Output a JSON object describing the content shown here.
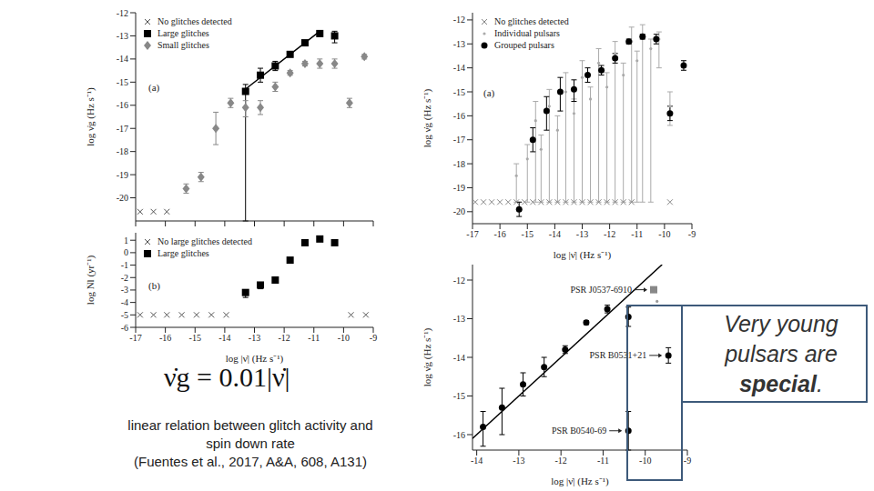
{
  "chart_data": [
    {
      "type": "scatter",
      "title": "(a)",
      "ylabel": "log ν̇g (Hz s⁻¹)",
      "xlim": [
        -17,
        -9
      ],
      "ylim": [
        -21,
        -12
      ],
      "xticks": [
        -17,
        -16,
        -15,
        -14,
        -13,
        -12,
        -11,
        -10,
        -9
      ],
      "yticks": [
        -20,
        -19,
        -18,
        -17,
        -16,
        -15,
        -14,
        -13,
        -12
      ],
      "tick_labels": "y",
      "legend": "upper left",
      "series": [
        {
          "name": "No glitches detected",
          "color": "#555555",
          "marker": "x",
          "x": [
            -16.85,
            -16.4,
            -15.95
          ],
          "y": [
            -20.6,
            -20.6,
            -20.6
          ]
        },
        {
          "name": "Large glitches",
          "color": "#000000",
          "marker": "square",
          "x": [
            -13.3,
            -12.8,
            -12.3,
            -11.8,
            -11.3,
            -10.8,
            -10.3
          ],
          "y": [
            -15.4,
            -14.7,
            -14.3,
            -13.8,
            -13.3,
            -12.9,
            -13.0
          ],
          "error": [
            [
              5.6,
              0.3
            ],
            [
              0.3,
              0.3
            ],
            [
              0.2,
              0.2
            ],
            [
              0.1,
              0.1
            ],
            [
              0.1,
              0.1
            ],
            [
              0.1,
              0.1
            ],
            [
              0.3,
              0.2
            ]
          ]
        },
        {
          "name": "Small glitches",
          "color": "#888888",
          "marker": "diamond",
          "x": [
            -15.3,
            -14.8,
            -14.3,
            -13.8,
            -13.3,
            -12.8,
            -12.3,
            -11.8,
            -11.3,
            -10.8,
            -10.3,
            -9.8,
            -9.3
          ],
          "y": [
            -19.6,
            -19.1,
            -17.0,
            -15.9,
            -16.1,
            -16.1,
            -15.2,
            -14.6,
            -14.2,
            -14.2,
            -14.2,
            -15.9,
            -13.9
          ],
          "error": [
            [
              0.2,
              0.2
            ],
            [
              0.2,
              0.2
            ],
            [
              0.7,
              0.7
            ],
            [
              0.2,
              0.2
            ],
            [
              0.4,
              0.3
            ],
            [
              0.3,
              0.3
            ],
            [
              0.2,
              0.2
            ],
            [
              0.1,
              0.1
            ],
            [
              0.1,
              0.1
            ],
            [
              0.2,
              0.2
            ],
            [
              0.2,
              0.2
            ],
            [
              0.2,
              0.2
            ],
            [
              0.1,
              0.1
            ]
          ]
        },
        {
          "type": "line",
          "color": "#000000",
          "line_style": "solid",
          "x": [
            -13.4,
            -10.85
          ],
          "y": [
            -15.4,
            -12.85
          ]
        }
      ]
    },
    {
      "type": "scatter",
      "title": "(b)",
      "xlabel": "log |ν̇| (Hz s⁻¹)",
      "ylabel": "log Ṅl (yr⁻¹)",
      "xlim": [
        -17,
        -9
      ],
      "ylim": [
        -6,
        1.6
      ],
      "xticks": [
        -17,
        -16,
        -15,
        -14,
        -13,
        -12,
        -11,
        -10,
        -9
      ],
      "yticks": [
        -6,
        -5,
        -4,
        -3,
        -2,
        -1,
        0,
        1
      ],
      "legend": "upper left",
      "series": [
        {
          "name": "No large glitches detected",
          "color": "#555555",
          "marker": "x",
          "x": [
            -16.85,
            -16.4,
            -15.95,
            -15.45,
            -14.95,
            -14.45,
            -13.95,
            -9.75,
            -9.25
          ],
          "y": [
            -5,
            -5,
            -5,
            -5,
            -5,
            -5,
            -5,
            -5,
            -5
          ]
        },
        {
          "name": "Large glitches",
          "color": "#000000",
          "marker": "square",
          "x": [
            -13.3,
            -12.8,
            -12.3,
            -11.8,
            -11.3,
            -10.8,
            -10.3
          ],
          "y": [
            -3.2,
            -2.6,
            -2.2,
            -0.6,
            0.8,
            1.1,
            0.8
          ],
          "error": [
            [
              0.4,
              0.2
            ],
            [
              0.3,
              0.2
            ],
            [
              0.2,
              0.1
            ],
            [
              0.1,
              0.1
            ],
            [
              0.1,
              0.1
            ],
            [
              0.1,
              0.1
            ],
            [
              0.2,
              0.1
            ]
          ]
        }
      ]
    },
    {
      "type": "scatter",
      "title": "(a)",
      "xlabel": "log |ν̇| (Hz s⁻¹)",
      "ylabel": "log ν̇g (Hz s⁻¹)",
      "xlim": [
        -17,
        -9
      ],
      "ylim": [
        -20.5,
        -11.7
      ],
      "xticks": [
        -17,
        -16,
        -15,
        -14,
        -13,
        -12,
        -11,
        -10,
        -9
      ],
      "yticks": [
        -20,
        -19,
        -18,
        -17,
        -16,
        -15,
        -14,
        -13,
        -12
      ],
      "legend": "upper left",
      "series": [
        {
          "name": "No glitches detected",
          "color": "#888888",
          "marker": "x",
          "x": [
            -16.9,
            -16.6,
            -16.3,
            -16.0,
            -15.7,
            -15.4,
            -15.1,
            -14.8,
            -14.5,
            -14.2,
            -13.9,
            -13.6,
            -13.3,
            -13.0,
            -12.7,
            -12.4,
            -12.1,
            -11.8,
            -11.5,
            -11.2,
            -9.8
          ],
          "y": [
            -19.6,
            -19.6,
            -19.6,
            -19.6,
            -19.6,
            -19.6,
            -19.6,
            -19.6,
            -19.6,
            -19.6,
            -19.6,
            -19.6,
            -19.6,
            -19.6,
            -19.6,
            -19.6,
            -19.6,
            -19.6,
            -19.6,
            -19.6,
            -19.6
          ]
        },
        {
          "name": "Individual pulsars",
          "color": "#aaaaaa",
          "marker": "point",
          "x": [
            -15.4,
            -15.0,
            -14.7,
            -14.5,
            -14.2,
            -13.9,
            -13.6,
            -13.3,
            -13.0,
            -12.7,
            -12.4,
            -12.1,
            -11.8,
            -11.5,
            -11.2,
            -11.0,
            -10.8,
            -10.5,
            -10.2,
            -9.8
          ],
          "y": [
            -18.5,
            -17.8,
            -16.2,
            -17.4,
            -15.6,
            -16.6,
            -15.0,
            -15.9,
            -14.4,
            -15.3,
            -13.8,
            -14.8,
            -13.4,
            -14.3,
            -12.9,
            -13.7,
            -12.6,
            -13.2,
            -12.8,
            -15.6
          ],
          "error": [
            [
              1.1,
              0.5
            ],
            [
              1.8,
              0.6
            ],
            [
              3.4,
              0.8
            ],
            [
              2.2,
              0.6
            ],
            [
              4.0,
              0.7
            ],
            [
              3.0,
              0.6
            ],
            [
              4.6,
              0.8
            ],
            [
              3.7,
              0.6
            ],
            [
              5.2,
              0.7
            ],
            [
              4.3,
              0.5
            ],
            [
              5.8,
              0.6
            ],
            [
              4.8,
              0.6
            ],
            [
              6.2,
              0.5
            ],
            [
              5.3,
              0.5
            ],
            [
              6.7,
              0.6
            ],
            [
              5.9,
              0.4
            ],
            [
              7.0,
              0.4
            ],
            [
              6.4,
              0.4
            ],
            [
              1.2,
              0.3
            ],
            [
              0.8,
              0.6
            ]
          ]
        },
        {
          "name": "Grouped pulsars",
          "color": "#000000",
          "marker": "circle",
          "x": [
            -15.3,
            -14.8,
            -14.3,
            -13.8,
            -13.3,
            -12.8,
            -12.3,
            -11.8,
            -11.3,
            -10.8,
            -10.3,
            -9.8,
            -9.3
          ],
          "y": [
            -19.9,
            -17.0,
            -15.8,
            -15.0,
            -14.9,
            -14.3,
            -14.1,
            -13.6,
            -12.9,
            -12.7,
            -12.8,
            -15.9,
            -13.9
          ],
          "error": [
            [
              0.3,
              0.3
            ],
            [
              0.5,
              0.5
            ],
            [
              0.8,
              0.6
            ],
            [
              0.8,
              0.6
            ],
            [
              0.5,
              0.4
            ],
            [
              0.3,
              0.3
            ],
            [
              0.2,
              0.2
            ],
            [
              0.2,
              0.2
            ],
            [
              0.1,
              0.1
            ],
            [
              0.1,
              0.1
            ],
            [
              0.2,
              0.2
            ],
            [
              0.3,
              0.3
            ],
            [
              0.2,
              0.2
            ]
          ]
        }
      ]
    },
    {
      "type": "scatter",
      "xlabel": "log |ν̇| (Hz s⁻¹)",
      "ylabel": "log ν̇g (Hz s⁻¹)",
      "xlim": [
        -14.1,
        -9
      ],
      "ylim": [
        -16.4,
        -11.6
      ],
      "xticks": [
        -14,
        -13,
        -12,
        -11,
        -10,
        -9
      ],
      "yticks": [
        -16,
        -15,
        -14,
        -13,
        -12
      ],
      "series": [
        {
          "type": "line",
          "color": "#000000",
          "line_style": "solid",
          "x": [
            -14.1,
            -9.6
          ],
          "y": [
            -16.1,
            -11.6
          ]
        },
        {
          "color": "#000000",
          "marker": "circle",
          "x": [
            -13.85,
            -13.4,
            -12.9,
            -12.4,
            -11.9,
            -11.4,
            -10.9,
            -10.4,
            -9.45,
            -10.4
          ],
          "y": [
            -15.8,
            -15.3,
            -14.7,
            -14.25,
            -13.8,
            -13.1,
            -12.75,
            -12.95,
            -13.95,
            -15.9
          ],
          "error": [
            [
              0.5,
              0.4
            ],
            [
              0.7,
              0.5
            ],
            [
              0.3,
              0.3
            ],
            [
              0.25,
              0.25
            ],
            [
              0.1,
              0.1
            ],
            [
              0.05,
              0.05
            ],
            [
              0.1,
              0.1
            ],
            [
              0.25,
              0.25
            ],
            [
              0.2,
              0.2
            ],
            [
              0.5,
              0.5
            ]
          ]
        },
        {
          "color": "#888888",
          "marker": "square",
          "x": [
            -9.8
          ],
          "y": [
            -12.25
          ]
        },
        {
          "color": "#999999",
          "marker": "point",
          "x": [
            -9.72
          ],
          "y": [
            -12.55
          ]
        }
      ],
      "annotations": [
        {
          "text": "PSR J0537-6910",
          "x": -9.8,
          "y": -12.25
        },
        {
          "text": "PSR B0531+21",
          "x": -9.45,
          "y": -13.95
        },
        {
          "text": "PSR B0540-69",
          "x": -10.4,
          "y": -15.9
        }
      ]
    }
  ],
  "slide": {
    "formula": "ν̇g = 0.01|ν̇|",
    "caption": [
      "linear relation between glitch activity and",
      "spin down rate",
      "(Fuentes et al., 2017, A&A, 608, A131)"
    ],
    "annotation": [
      "Very young pulsars are ",
      "special",
      "."
    ]
  }
}
